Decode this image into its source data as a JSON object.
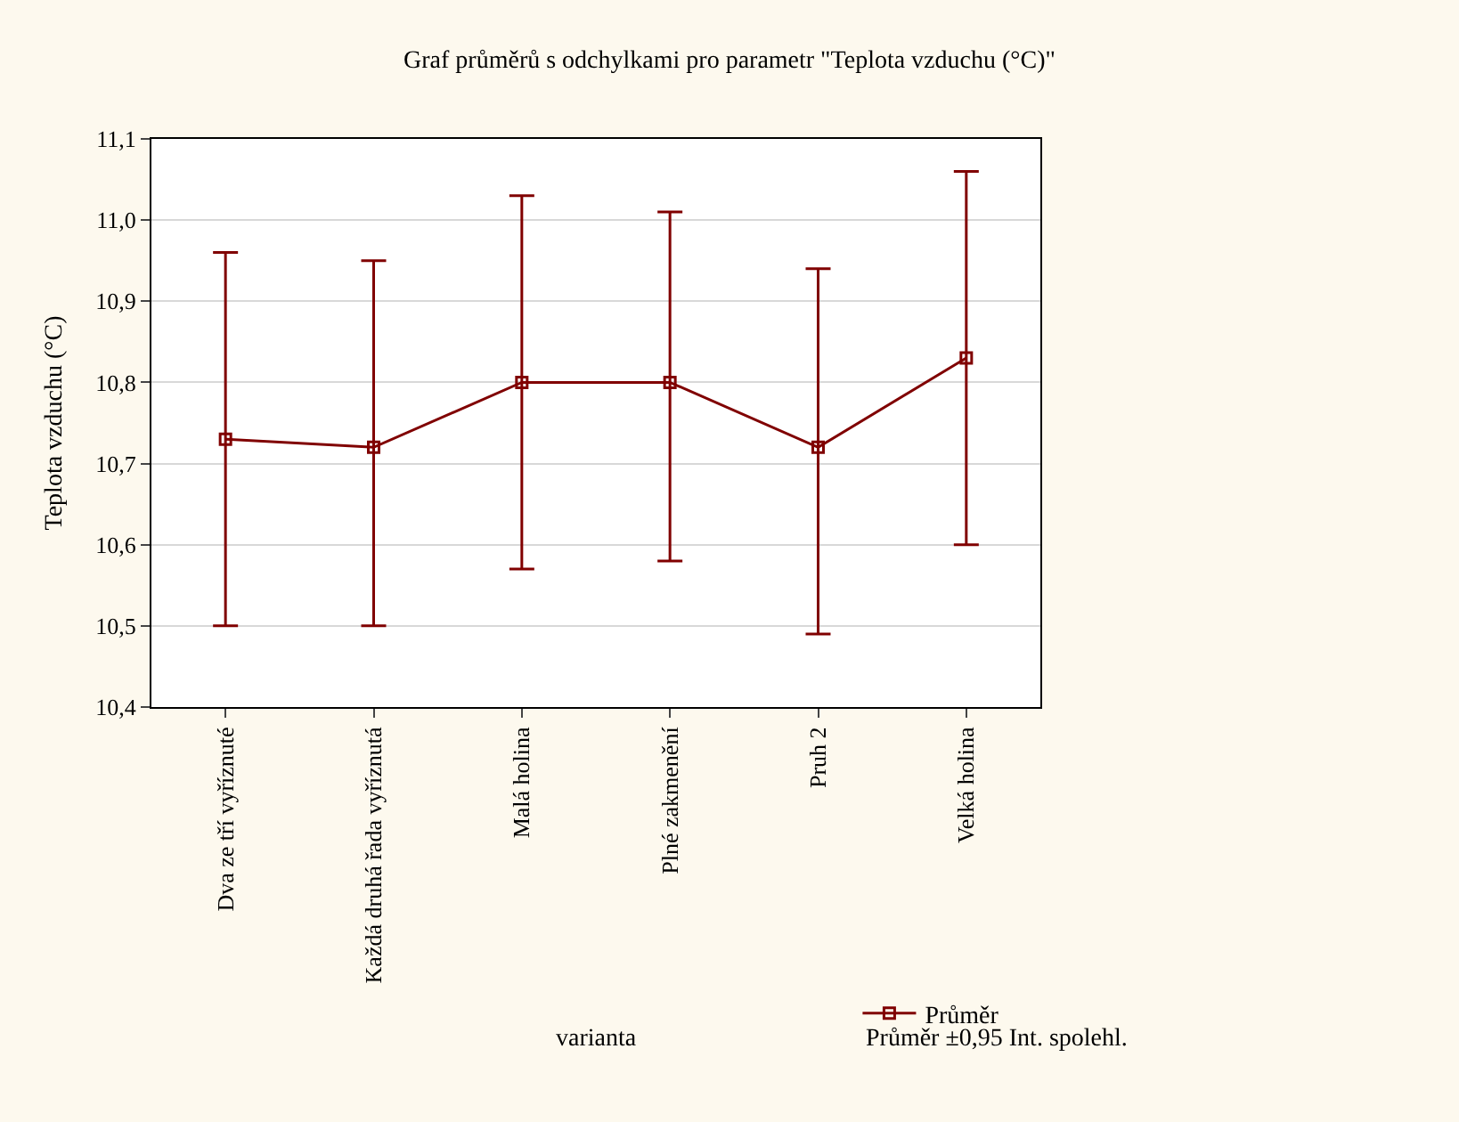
{
  "chart_data": {
    "type": "line",
    "title": "Graf průměrů s odchylkami pro parametr \"Teplota vzduchu (°C)\"",
    "xlabel": "varianta",
    "ylabel": "Teplota vzduchu (°C)",
    "categories": [
      "Dva ze tří vyříznuté",
      "Každá druhá řada vyříznutá",
      "Malá holina",
      "Plné zakmenění",
      "Pruh 2",
      "Velká holina"
    ],
    "series": [
      {
        "name": "Průměr",
        "color": "#800000",
        "values": [
          10.73,
          10.72,
          10.8,
          10.8,
          10.72,
          10.83
        ],
        "errors": [
          [
            10.5,
            10.96
          ],
          [
            10.5,
            10.95
          ],
          [
            10.57,
            11.03
          ],
          [
            10.58,
            11.01
          ],
          [
            10.49,
            10.94
          ],
          [
            10.6,
            11.06
          ]
        ]
      }
    ],
    "annotations": [
      "Průměr ±0,95 Int. spolehl."
    ],
    "ylim": [
      10.4,
      11.1
    ],
    "yticks": [
      {
        "value": 10.4,
        "label": "10,4"
      },
      {
        "value": 10.5,
        "label": "10,5"
      },
      {
        "value": 10.6,
        "label": "10,6"
      },
      {
        "value": 10.7,
        "label": "10,7"
      },
      {
        "value": 10.8,
        "label": "10,8"
      },
      {
        "value": 10.9,
        "label": "10,9"
      },
      {
        "value": 11.0,
        "label": "11,0"
      },
      {
        "value": 11.1,
        "label": "11,1"
      }
    ],
    "grid": "y",
    "legend": "bottom right",
    "marker": "square",
    "line_style": "solid"
  }
}
